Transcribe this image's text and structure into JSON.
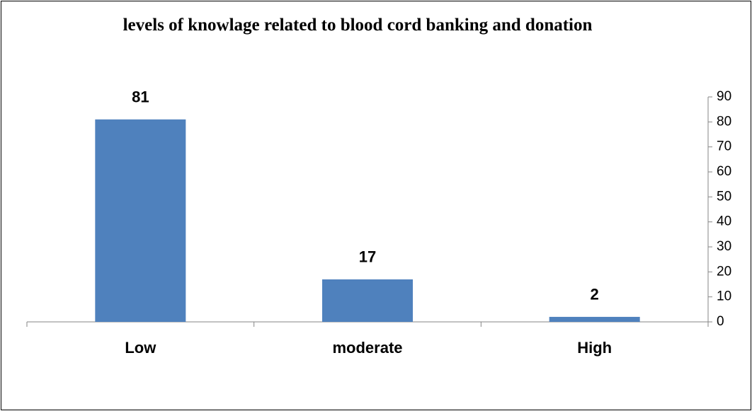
{
  "chart_data": {
    "type": "bar",
    "title": "levels of knowlage related to blood cord banking and donation",
    "categories": [
      "Low",
      "moderate",
      "High"
    ],
    "values": [
      81,
      17,
      2
    ],
    "color": "#4f81bd",
    "ylim": [
      0,
      90
    ],
    "yticks": [
      0,
      10,
      20,
      30,
      40,
      50,
      60,
      70,
      80,
      90
    ],
    "y_axis_side": "right",
    "data_labels": true
  }
}
